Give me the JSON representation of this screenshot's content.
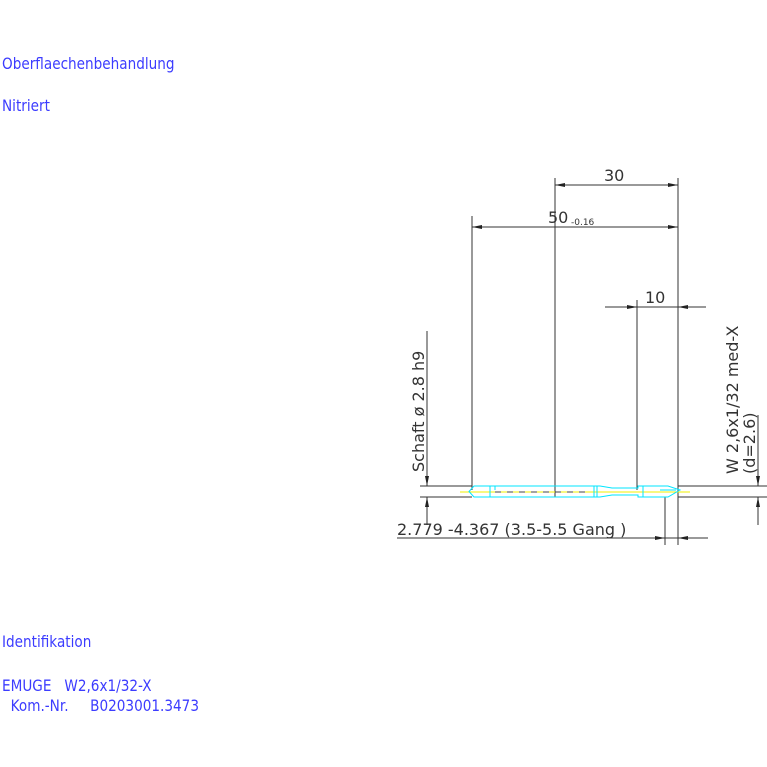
{
  "header": {
    "label": "Oberflaechenbehandlung",
    "value": "Nitriert"
  },
  "identification": {
    "label": "Identifikation",
    "line1": "EMUGE   W2,6x1/32-X",
    "line2": "  Kom.-Nr.     B0203001.3473"
  },
  "drawing": {
    "dim_30": "30",
    "dim_50": "50",
    "dim_50_tol": "-0.16",
    "dim_10": "10",
    "shank_label": "Schaft  ø 2.8  h9",
    "thread_label": "W 2,6x1/32 med-X",
    "thread_d": "(d=2.6)",
    "range_label": "2.779 -4.367 (3.5-5.5 Gang  )",
    "colors": {
      "dim": "#333333",
      "outline": "#00e5ff",
      "centerline": "#f0f000",
      "text_blue": "#3c3cff"
    }
  }
}
